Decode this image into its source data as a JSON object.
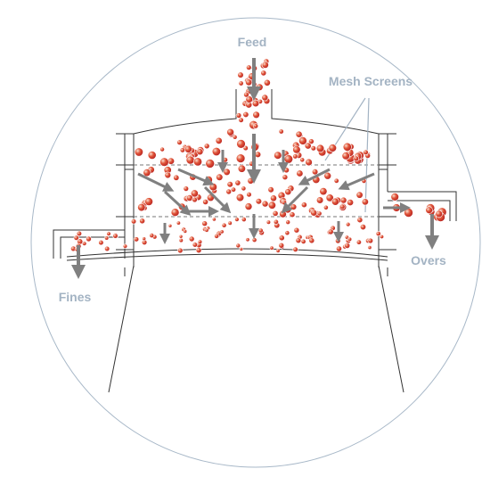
{
  "labels": {
    "feed": "Feed",
    "mesh_screens": "Mesh Screens",
    "overs": "Overs",
    "fines": "Fines"
  }
}
